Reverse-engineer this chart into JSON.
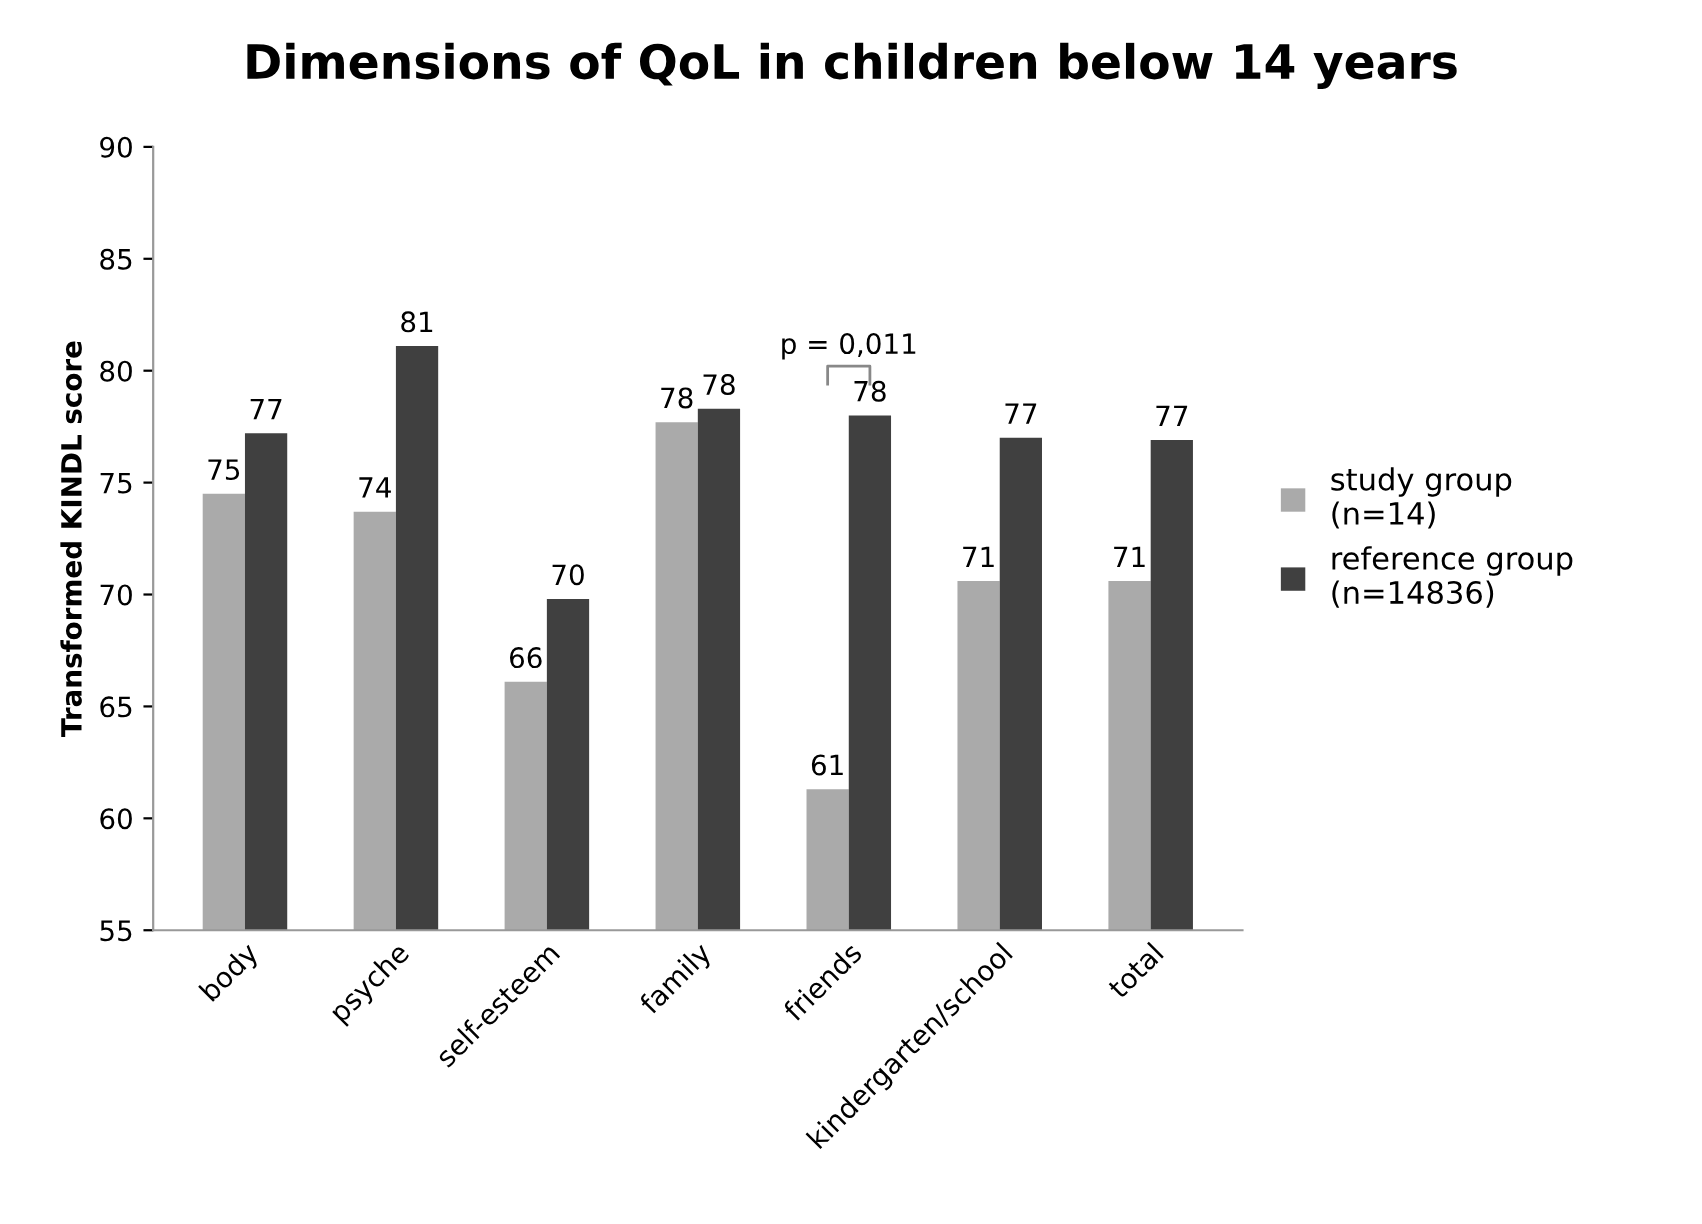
{
  "chart_data": {
    "type": "bar",
    "title": "Dimensions of QoL in children below 14 years",
    "ylabel": "Transformed KINDL score",
    "categories": [
      "body",
      "psyche",
      "self-esteem",
      "family",
      "friends",
      "kindergarten/school",
      "total"
    ],
    "series": [
      {
        "name": "study group\n(n=14)",
        "color": "#aaaaaa",
        "values": [
          74.5,
          73.7,
          66.1,
          77.7,
          61.3,
          70.6,
          70.6
        ],
        "value_labels": [
          "75",
          "74",
          "66",
          "78",
          "61",
          "71",
          "71"
        ]
      },
      {
        "name": "reference group\n(n=14836)",
        "color": "#404040",
        "values": [
          77.2,
          81.1,
          69.8,
          78.3,
          78.0,
          77.0,
          76.9
        ],
        "value_labels": [
          "77",
          "81",
          "70",
          "78",
          "78",
          "77",
          "77"
        ]
      }
    ],
    "annotations": [
      "p = 0,011"
    ],
    "ylim": [
      55,
      90
    ],
    "yticks": [
      55,
      60,
      65,
      70,
      75,
      80,
      85,
      90
    ],
    "grid": false,
    "legend": "right"
  }
}
